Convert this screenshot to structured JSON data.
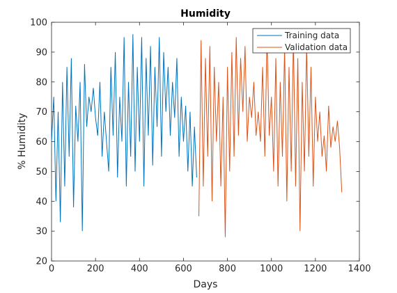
{
  "chart_data": {
    "type": "line",
    "title": "Humidity",
    "xlabel": "Days",
    "ylabel": "% Humidity",
    "xlim": [
      0,
      1400
    ],
    "ylim": [
      20,
      100
    ],
    "xticks": [
      "0",
      "200",
      "400",
      "600",
      "800",
      "1000",
      "1200",
      "1400"
    ],
    "yticks": [
      "20",
      "30",
      "40",
      "50",
      "60",
      "70",
      "80",
      "90",
      "100"
    ],
    "grid": false,
    "legend_position": "top-right",
    "series": [
      {
        "name": "Training data",
        "color": "#0072BD",
        "x": [
          0,
          10,
          20,
          30,
          40,
          50,
          60,
          70,
          80,
          90,
          100,
          110,
          120,
          130,
          140,
          150,
          160,
          170,
          180,
          190,
          200,
          210,
          220,
          230,
          240,
          250,
          260,
          270,
          280,
          290,
          300,
          310,
          320,
          330,
          340,
          350,
          360,
          370,
          380,
          390,
          400,
          410,
          420,
          430,
          440,
          450,
          460,
          470,
          480,
          490,
          500,
          510,
          520,
          530,
          540,
          550,
          560,
          570,
          580,
          590,
          600,
          610,
          620,
          630,
          640,
          650,
          660
        ],
        "values": [
          60,
          75,
          40,
          70,
          33,
          80,
          45,
          85,
          55,
          88,
          38,
          72,
          60,
          80,
          30,
          86,
          65,
          75,
          70,
          78,
          68,
          62,
          80,
          55,
          70,
          60,
          50,
          85,
          62,
          90,
          48,
          75,
          60,
          95,
          45,
          80,
          55,
          96,
          50,
          85,
          60,
          95,
          45,
          88,
          62,
          92,
          52,
          85,
          65,
          95,
          55,
          90,
          70,
          85,
          62,
          80,
          68,
          88,
          55,
          75,
          60,
          72,
          50,
          70,
          45,
          65,
          48
        ]
      },
      {
        "name": "Validation data",
        "color": "#D95319",
        "x": [
          670,
          680,
          690,
          700,
          710,
          720,
          730,
          740,
          750,
          760,
          770,
          780,
          790,
          800,
          810,
          820,
          830,
          840,
          850,
          860,
          870,
          880,
          890,
          900,
          910,
          920,
          930,
          940,
          950,
          960,
          970,
          980,
          990,
          1000,
          1010,
          1020,
          1030,
          1040,
          1050,
          1060,
          1070,
          1080,
          1090,
          1100,
          1110,
          1120,
          1130,
          1140,
          1150,
          1160,
          1170,
          1180,
          1190,
          1200,
          1210,
          1220,
          1230,
          1240,
          1250,
          1260,
          1270,
          1280,
          1290,
          1300,
          1310,
          1320
        ],
        "values": [
          35,
          94,
          45,
          88,
          55,
          92,
          40,
          85,
          60,
          80,
          45,
          75,
          28,
          85,
          50,
          90,
          55,
          95,
          62,
          88,
          70,
          92,
          60,
          75,
          68,
          80,
          62,
          70,
          60,
          85,
          55,
          95,
          62,
          75,
          50,
          88,
          45,
          80,
          55,
          92,
          40,
          85,
          50,
          95,
          45,
          88,
          30,
          80,
          50,
          92,
          55,
          85,
          45,
          75,
          60,
          70,
          55,
          62,
          50,
          72,
          58,
          65,
          60,
          67,
          58,
          43
        ]
      }
    ]
  }
}
